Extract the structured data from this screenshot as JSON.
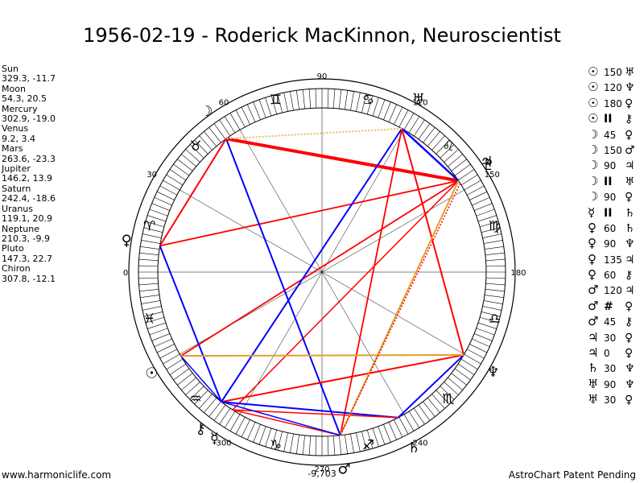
{
  "title": "1956-02-19 - Roderick MacKinnon, Neuroscientist",
  "footer": {
    "left": "www.harmoniclife.com",
    "right": "AstroChart Patent Pending"
  },
  "planets": [
    {
      "name": "Sun",
      "pos": "329.3, -11.7",
      "lon": 329.3,
      "glyph": "☉"
    },
    {
      "name": "Moon",
      "pos": "54.3, 20.5",
      "lon": 54.3,
      "glyph": "☽"
    },
    {
      "name": "Mercury",
      "pos": "302.9, -19.0",
      "lon": 302.9,
      "glyph": "☿"
    },
    {
      "name": "Venus",
      "pos": "9.2, 3.4",
      "lon": 9.2,
      "glyph": "♀"
    },
    {
      "name": "Mars",
      "pos": "263.6, -23.3",
      "lon": 263.6,
      "glyph": "♂"
    },
    {
      "name": "Jupiter",
      "pos": "146.2, 13.9",
      "lon": 146.2,
      "glyph": "♃"
    },
    {
      "name": "Saturn",
      "pos": "242.4, -18.6",
      "lon": 242.4,
      "glyph": "♄"
    },
    {
      "name": "Uranus",
      "pos": "119.1, 20.9",
      "lon": 119.1,
      "glyph": "♅"
    },
    {
      "name": "Neptune",
      "pos": "210.3, -9.9",
      "lon": 210.3,
      "glyph": "♆"
    },
    {
      "name": "Pluto",
      "pos": "147.3, 22.7",
      "lon": 147.3,
      "glyph": "♇"
    },
    {
      "name": "Chiron",
      "pos": "307.8, -12.1",
      "lon": 307.8,
      "glyph": "⚷"
    }
  ],
  "degree_labels": [
    {
      "text": "90",
      "deg": 90
    },
    {
      "text": "60",
      "deg": 60
    },
    {
      "text": "30",
      "deg": 30
    },
    {
      "text": "0",
      "deg": 0
    },
    {
      "text": "120",
      "deg": 120
    },
    {
      "text": "150",
      "deg": 150
    },
    {
      "text": "180",
      "deg": 180
    },
    {
      "text": "240",
      "deg": 240
    },
    {
      "text": "270",
      "deg": 270
    },
    {
      "text": "300",
      "deg": 300
    }
  ],
  "extra_label": "-9,703",
  "signs": [
    {
      "glyph": "♈",
      "deg": 15
    },
    {
      "glyph": "♉",
      "deg": 45
    },
    {
      "glyph": "♊",
      "deg": 75
    },
    {
      "glyph": "♋",
      "deg": 105
    },
    {
      "glyph": "♌",
      "deg": 135
    },
    {
      "glyph": "♍",
      "deg": 165
    },
    {
      "glyph": "♎",
      "deg": 195
    },
    {
      "glyph": "♏",
      "deg": 225
    },
    {
      "glyph": "♐",
      "deg": 255
    },
    {
      "glyph": "♑",
      "deg": 285
    },
    {
      "glyph": "♒",
      "deg": 315
    },
    {
      "glyph": "♓",
      "deg": 345
    }
  ],
  "aspects_list": [
    {
      "p1": "☉",
      "asp": "150",
      "p2": "♅"
    },
    {
      "p1": "☉",
      "asp": "120",
      "p2": "♆"
    },
    {
      "p1": "☉",
      "asp": "180",
      "p2": "♀"
    },
    {
      "p1": "☉",
      "asp": "II",
      "p2": "⚷"
    },
    {
      "p1": "☽",
      "asp": "45",
      "p2": "♀"
    },
    {
      "p1": "☽",
      "asp": "150",
      "p2": "♂"
    },
    {
      "p1": "☽",
      "asp": "90",
      "p2": "♃"
    },
    {
      "p1": "☽",
      "asp": "II",
      "p2": "♅"
    },
    {
      "p1": "☽",
      "asp": "90",
      "p2": "♀"
    },
    {
      "p1": "☿",
      "asp": "II",
      "p2": "♄"
    },
    {
      "p1": "♀",
      "asp": "60",
      "p2": "♄"
    },
    {
      "p1": "♀",
      "asp": "90",
      "p2": "♆"
    },
    {
      "p1": "♀",
      "asp": "135",
      "p2": "♃"
    },
    {
      "p1": "♀",
      "asp": "60",
      "p2": "⚷"
    },
    {
      "p1": "♂",
      "asp": "120",
      "p2": "♃"
    },
    {
      "p1": "♂",
      "asp": "#",
      "p2": "♀"
    },
    {
      "p1": "♂",
      "asp": "45",
      "p2": "⚷"
    },
    {
      "p1": "♃",
      "asp": "30",
      "p2": "♀"
    },
    {
      "p1": "♃",
      "asp": "0",
      "p2": "♀"
    },
    {
      "p1": "♄",
      "asp": "30",
      "p2": "♆"
    },
    {
      "p1": "♅",
      "asp": "90",
      "p2": "♆"
    },
    {
      "p1": "♅",
      "asp": "30",
      "p2": "♀"
    }
  ],
  "aspect_lines": [
    {
      "a": 329.3,
      "b": 146.2,
      "color": "#ff0000",
      "width": 1.8
    },
    {
      "a": 146.2,
      "b": 54.3,
      "color": "#ff0000",
      "width": 4
    },
    {
      "a": 146.2,
      "b": 9.2,
      "color": "#ff0000",
      "width": 1.8
    },
    {
      "a": 146.2,
      "b": 303.0,
      "color": "#ff0000",
      "width": 1.5
    },
    {
      "a": 119.1,
      "b": 263.6,
      "color": "#ff0000",
      "width": 1.8
    },
    {
      "a": 119.1,
      "b": 146.2,
      "color": "#0000ff",
      "width": 2.5
    },
    {
      "a": 119.1,
      "b": 307.8,
      "color": "#0000ff",
      "width": 2
    },
    {
      "a": 54.3,
      "b": 263.6,
      "color": "#0000ff",
      "width": 2
    },
    {
      "a": 54.3,
      "b": 9.2,
      "color": "#ff0000",
      "width": 2
    },
    {
      "a": 9.2,
      "b": 307.8,
      "color": "#0000ff",
      "width": 2
    },
    {
      "a": 329.3,
      "b": 307.8,
      "color": "#0000ff",
      "width": 1.5
    },
    {
      "a": 210.3,
      "b": 119.1,
      "color": "#ff0000",
      "width": 2
    },
    {
      "a": 210.3,
      "b": 242.4,
      "color": "#0000ff",
      "width": 2
    },
    {
      "a": 210.3,
      "b": 307.8,
      "color": "#ff0000",
      "width": 2
    },
    {
      "a": 210.3,
      "b": 329.3,
      "color": "#e0a030",
      "width": 2
    },
    {
      "a": 242.4,
      "b": 307.8,
      "color": "#0000ff",
      "width": 2
    },
    {
      "a": 242.4,
      "b": 303.0,
      "color": "#ff0000",
      "width": 1.5
    },
    {
      "a": 263.6,
      "b": 302.9,
      "color": "#ff0000",
      "width": 1.5
    },
    {
      "a": 263.6,
      "b": 307.8,
      "color": "#0000ff",
      "width": 1.5
    },
    {
      "a": 146.2,
      "b": 263.6,
      "color": "#e0a030",
      "width": 2
    },
    {
      "a": 147.3,
      "b": 263.6,
      "color": "#ff0000",
      "width": 1.5,
      "dash": true
    },
    {
      "a": 119.1,
      "b": 54.3,
      "color": "#e0c060",
      "width": 2,
      "dash": true
    }
  ],
  "colors": {
    "red": "#ff0000",
    "blue": "#0000ff",
    "orange": "#e0a030"
  }
}
